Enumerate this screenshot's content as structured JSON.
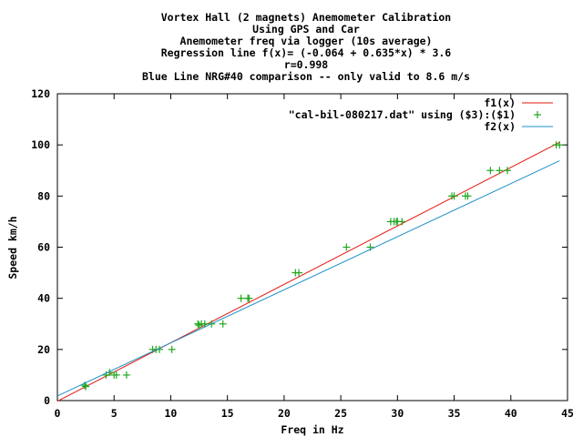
{
  "chart_data": {
    "type": "scatter",
    "title_lines": [
      "Vortex Hall (2 magnets) Anemometer Calibration",
      "Using GPS and Car",
      "Anemometer freq via logger (10s average)",
      "Regression line  f(x)= (-0.064 + 0.635*x)  * 3.6",
      "r=0.998",
      "Blue Line NRG#40 comparison -- only valid to 8.6 m/s"
    ],
    "xlabel": "Freq in Hz",
    "ylabel": "Speed km/h",
    "xlim": [
      0,
      45
    ],
    "ylim": [
      0,
      120
    ],
    "xticks": [
      "0",
      "5",
      "10",
      "15",
      "20",
      "25",
      "30",
      "35",
      "40",
      "45"
    ],
    "yticks": [
      "0",
      "20",
      "40",
      "60",
      "80",
      "100",
      "120"
    ],
    "grid": false,
    "legend_position": "top-right",
    "series": [
      {
        "name": "f1(x)",
        "kind": "line",
        "color": "#e3170d",
        "equation": "(-0.064 + 0.635*x) * 3.6",
        "x": [
          0,
          44.3
        ],
        "y": [
          -0.23,
          101.0
        ]
      },
      {
        "name": "\"cal-bil-080217.dat\" using  ($3):($1)",
        "kind": "points",
        "marker": "+",
        "color": "#1fa81f",
        "x": [
          2.4,
          2.5,
          4.3,
          4.6,
          5.0,
          5.2,
          6.1,
          8.4,
          8.7,
          9.0,
          10.1,
          12.4,
          12.5,
          12.7,
          13.0,
          13.6,
          14.6,
          16.2,
          16.8,
          16.9,
          21.0,
          21.3,
          25.5,
          27.6,
          29.4,
          29.7,
          29.9,
          30.0,
          30.4,
          34.8,
          35.0,
          36.0,
          36.2,
          38.2,
          39.0,
          39.7,
          44.0,
          44.3
        ],
        "y": [
          6,
          5.5,
          10,
          11,
          10,
          10,
          10,
          20,
          20,
          20,
          20,
          30,
          29.5,
          30,
          30,
          30,
          30,
          40,
          40,
          40,
          50,
          50,
          60,
          60,
          70,
          70,
          70,
          70,
          70,
          80,
          80,
          80,
          80,
          90,
          90,
          90,
          100,
          100
        ]
      },
      {
        "name": "f2(x)",
        "kind": "line",
        "color": "#1e90c8",
        "x": [
          0,
          44.3
        ],
        "y": [
          1.8,
          93.8
        ]
      }
    ]
  }
}
